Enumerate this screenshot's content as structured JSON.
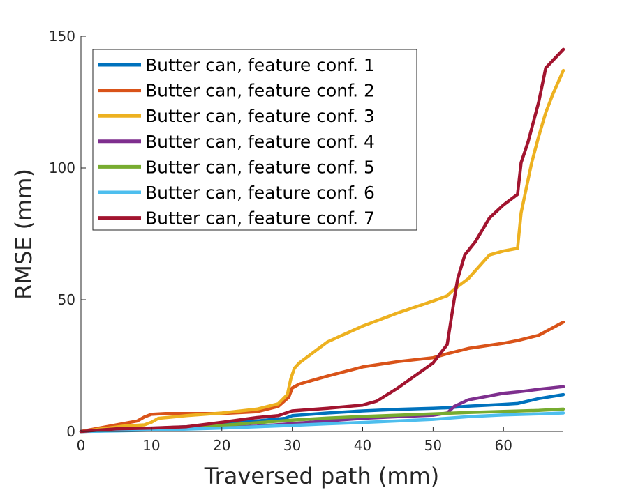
{
  "chart_data": {
    "type": "line",
    "title": "",
    "xlabel": "Traversed path (mm)",
    "ylabel": "RMSE (mm)",
    "xlim": [
      0,
      68.5
    ],
    "ylim": [
      0,
      150
    ],
    "xticks": [
      "0",
      "10",
      "20",
      "30",
      "40",
      "50",
      "60"
    ],
    "yticks": [
      "0",
      "50",
      "100",
      "150"
    ],
    "grid": false,
    "legend_position": "top-left",
    "series": [
      {
        "name": "Butter can, feature conf. 1",
        "color": "#0072BD",
        "x": [
          0,
          5,
          10,
          15,
          20,
          25,
          29,
          30,
          35,
          40,
          45,
          50,
          52,
          55,
          60,
          62,
          65,
          68.5
        ],
        "y": [
          0,
          0.5,
          1.2,
          1.8,
          2.8,
          4,
          5,
          6,
          7,
          7.8,
          8.4,
          8.8,
          9,
          9.6,
          10.3,
          10.6,
          12.5,
          14
        ]
      },
      {
        "name": "Butter can, feature conf. 2",
        "color": "#D95319",
        "x": [
          0,
          3,
          6,
          8,
          9,
          10,
          12,
          15,
          20,
          25,
          28,
          29.5,
          30,
          31,
          35,
          40,
          45,
          50,
          52,
          55,
          60,
          62,
          65,
          68.5
        ],
        "y": [
          0,
          1.5,
          3,
          4,
          5.5,
          6.5,
          6.8,
          6.8,
          6.8,
          7.5,
          9.5,
          13,
          16.5,
          18,
          21,
          24.5,
          26.5,
          28,
          29.5,
          31.5,
          33.5,
          34.5,
          36.5,
          41.5
        ]
      },
      {
        "name": "Butter can, feature conf. 3",
        "color": "#EDB120",
        "x": [
          0,
          3,
          6,
          9,
          10,
          11,
          13,
          15,
          20,
          25,
          28,
          29.3,
          29.8,
          30.3,
          31,
          33,
          35,
          40,
          45,
          50,
          52,
          53,
          55,
          56,
          58,
          60,
          62,
          62.5,
          64,
          65,
          66,
          67,
          68.5
        ],
        "y": [
          0,
          1,
          2,
          2.5,
          3.5,
          5,
          5.5,
          6,
          7,
          8.5,
          10.5,
          14,
          20,
          24,
          26,
          30,
          34,
          40,
          45,
          49.5,
          51.5,
          54,
          58,
          61,
          67,
          68.5,
          69.5,
          83,
          102,
          112,
          121,
          128,
          137
        ]
      },
      {
        "name": "Butter can, feature conf. 4",
        "color": "#7E2F8E",
        "x": [
          0,
          5,
          10,
          15,
          20,
          25,
          30,
          35,
          40,
          45,
          50,
          52,
          53,
          55,
          58,
          60,
          62,
          65,
          68.5
        ],
        "y": [
          0,
          0.3,
          0.7,
          1,
          1.5,
          2,
          3,
          4,
          5,
          5.6,
          6.2,
          7,
          9.5,
          12,
          13.5,
          14.5,
          15,
          16,
          17
        ]
      },
      {
        "name": "Butter can, feature conf. 5",
        "color": "#77AC30",
        "x": [
          0,
          5,
          10,
          15,
          20,
          25,
          30,
          35,
          40,
          45,
          50,
          55,
          60,
          65,
          68.5
        ],
        "y": [
          0,
          0.4,
          0.8,
          1.4,
          2.3,
          3.3,
          4.3,
          5.1,
          5.7,
          6.2,
          6.7,
          7.2,
          7.6,
          8,
          8.5
        ]
      },
      {
        "name": "Butter can, feature conf. 6",
        "color": "#4DBEEE",
        "x": [
          0,
          5,
          10,
          15,
          20,
          25,
          30,
          35,
          40,
          45,
          50,
          55,
          60,
          65,
          68.5
        ],
        "y": [
          0,
          0.2,
          0.5,
          0.9,
          1.3,
          1.8,
          2.3,
          2.9,
          3.4,
          4,
          4.6,
          5.6,
          6.3,
          6.7,
          7
        ]
      },
      {
        "name": "Butter can, feature conf. 7",
        "color": "#A2142F",
        "x": [
          0,
          5,
          10,
          15,
          20,
          25,
          28,
          30,
          35,
          40,
          42,
          45,
          50,
          52,
          53,
          53.5,
          54.5,
          56,
          58,
          60,
          62,
          62.5,
          63.5,
          65,
          66,
          68.5
        ],
        "y": [
          0,
          1,
          1.3,
          1.8,
          3.5,
          5.3,
          6,
          7.8,
          8.8,
          10,
          11.5,
          16.5,
          26,
          33,
          50,
          58,
          67,
          72,
          81,
          86,
          90,
          102,
          110,
          125,
          138,
          145
        ]
      }
    ]
  }
}
